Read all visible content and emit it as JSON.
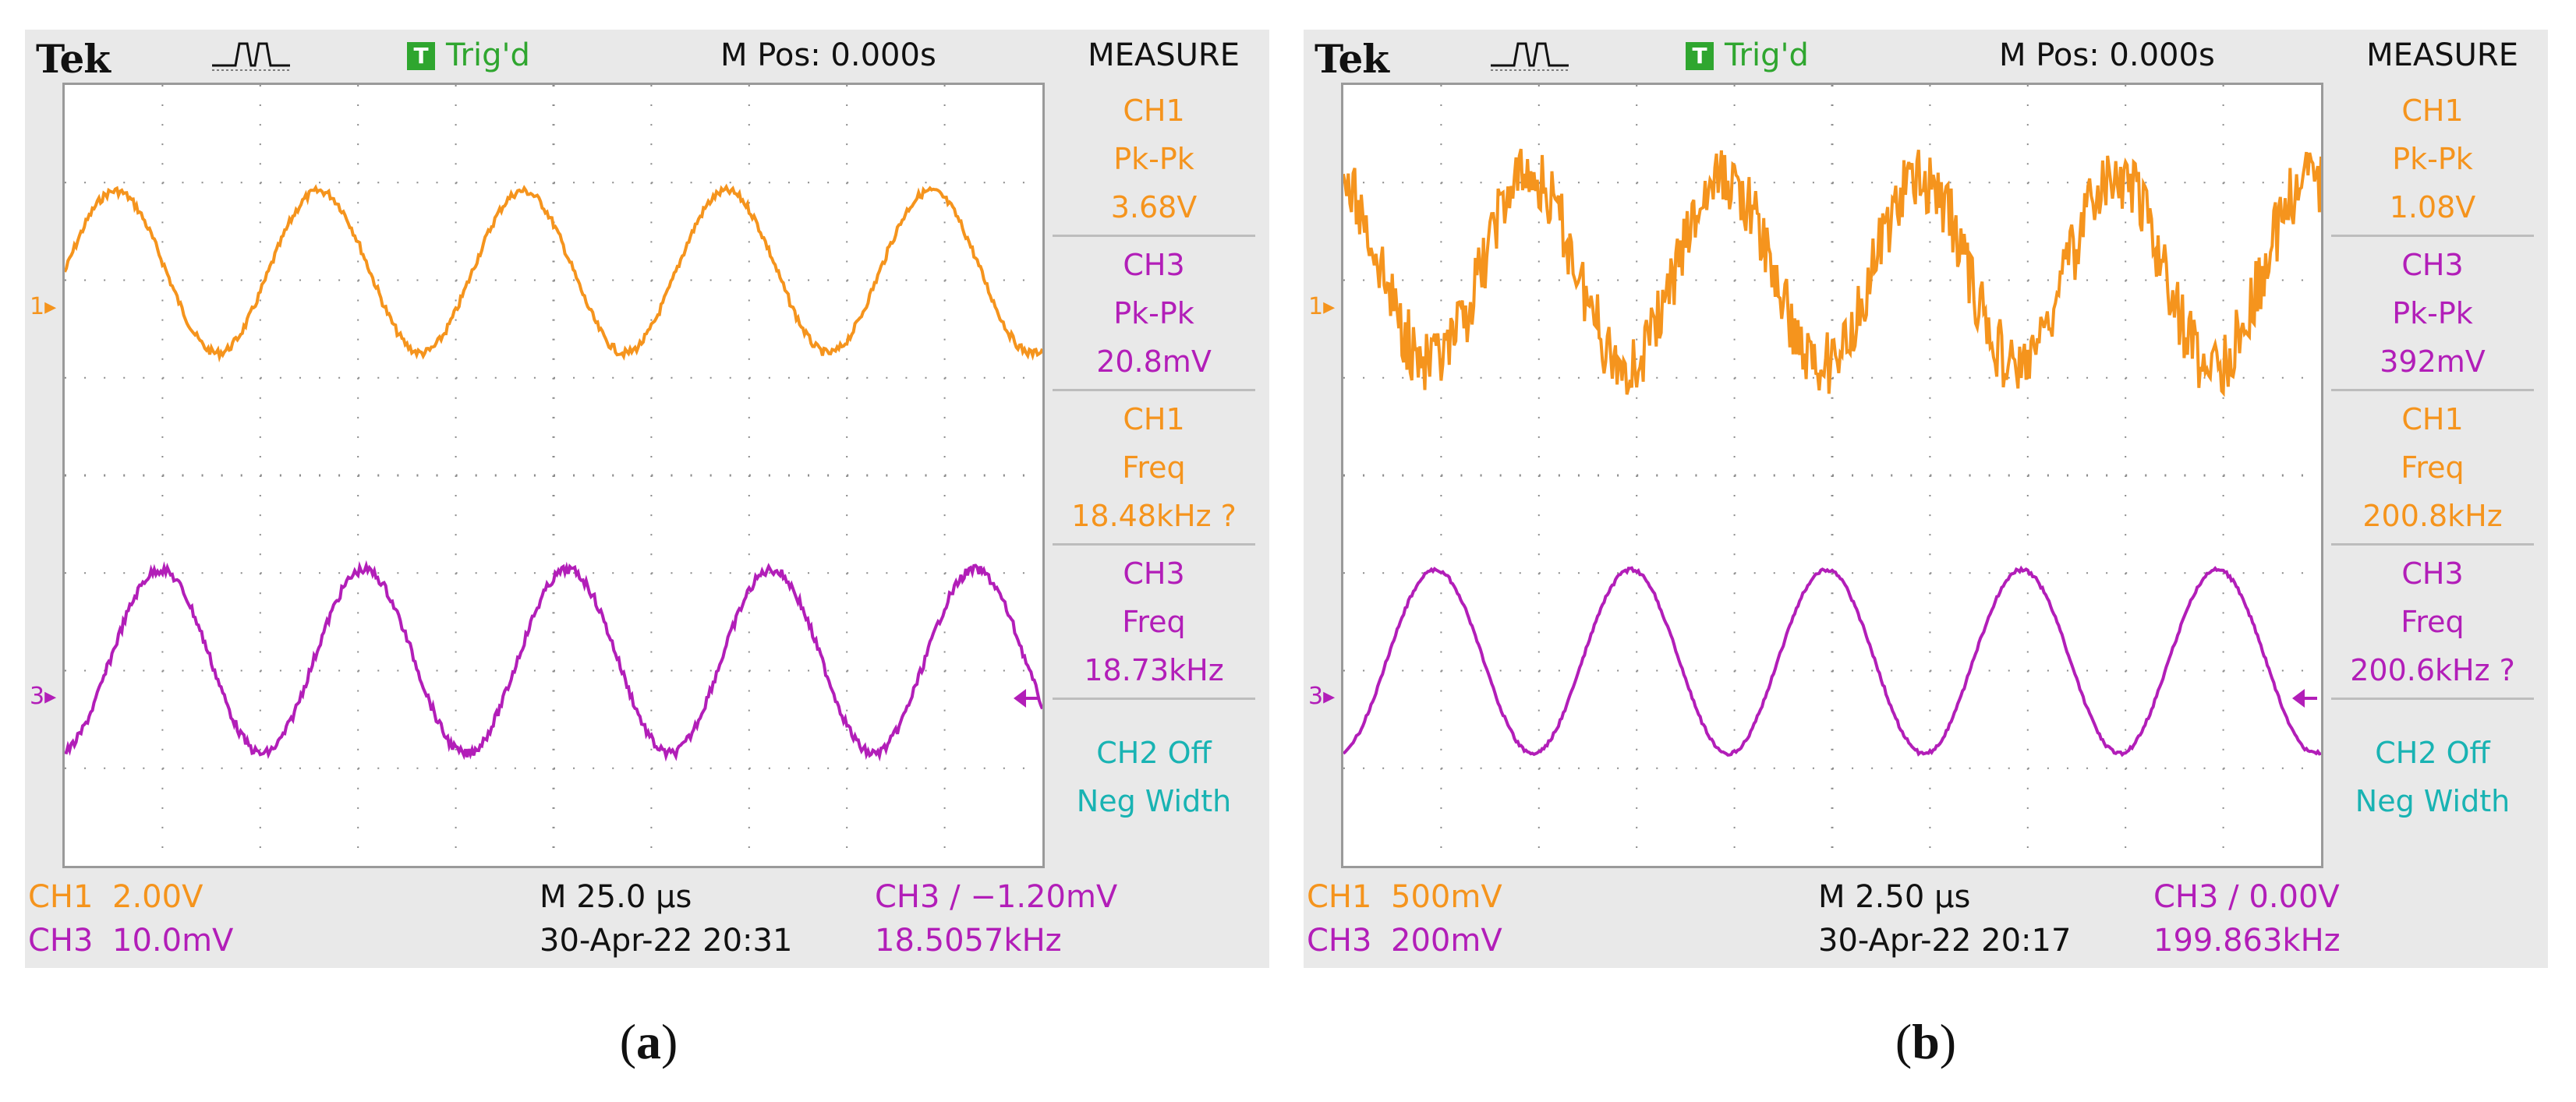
{
  "colors": {
    "ch1": "#f5941d",
    "ch3": "#b21eb8",
    "ch2": "#19b3b3",
    "trig": "#2fa62f"
  },
  "panels": [
    {
      "caption_open": "(",
      "caption_letter": "a",
      "caption_close": ")",
      "header": {
        "brand": "Tek",
        "trig_icon": "T",
        "trig_status": "Trig'd",
        "m_pos": "M Pos: 0.000s",
        "measure_title": "MEASURE"
      },
      "markers": {
        "ch1": "1▸",
        "ch3": "3▸"
      },
      "measurements": [
        {
          "channel": "CH1",
          "label": "Pk-Pk",
          "value": "3.68V",
          "color": "#f5941d"
        },
        {
          "channel": "CH3",
          "label": "Pk-Pk",
          "value": "20.8mV",
          "color": "#b21eb8"
        },
        {
          "channel": "CH1",
          "label": "Freq",
          "value": "18.48kHz ?",
          "color": "#f5941d"
        },
        {
          "channel": "CH3",
          "label": "Freq",
          "value": "18.73kHz",
          "color": "#b21eb8"
        },
        {
          "channel": "CH2 Off",
          "label": "Neg Width",
          "value": "",
          "color": "#19b3b3"
        }
      ],
      "footer": {
        "ch1_label": "CH1",
        "ch1_scale": "2.00V",
        "ch3_label": "CH3",
        "ch3_scale": "10.0mV",
        "timebase": "M 25.0 µs",
        "datetime": "30-Apr-22 20:31",
        "trigger": "CH3 ∕ −1.20mV",
        "trigger_freq": "18.5057kHz"
      },
      "waves": {
        "ch1_cycles": 4.8,
        "ch1_phase": 0.0,
        "ch1_noise": 0.05,
        "ch3_cycles": 4.8,
        "ch3_phase": 0.0,
        "ch3_noise": 0.05
      }
    },
    {
      "caption_open": "(",
      "caption_letter": "b",
      "caption_close": ")",
      "header": {
        "brand": "Tek",
        "trig_icon": "T",
        "trig_status": "Trig'd",
        "m_pos": "M Pos: 0.000s",
        "measure_title": "MEASURE"
      },
      "markers": {
        "ch1": "1▸",
        "ch3": "3▸"
      },
      "measurements": [
        {
          "channel": "CH1",
          "label": "Pk-Pk",
          "value": "1.08V",
          "color": "#f5941d"
        },
        {
          "channel": "CH3",
          "label": "Pk-Pk",
          "value": "392mV",
          "color": "#b21eb8"
        },
        {
          "channel": "CH1",
          "label": "Freq",
          "value": "200.8kHz",
          "color": "#f5941d"
        },
        {
          "channel": "CH3",
          "label": "Freq",
          "value": "200.6kHz ?",
          "color": "#b21eb8"
        },
        {
          "channel": "CH2 Off",
          "label": "Neg Width",
          "value": "",
          "color": "#19b3b3"
        }
      ],
      "footer": {
        "ch1_label": "CH1",
        "ch1_scale": "500mV",
        "ch3_label": "CH3",
        "ch3_scale": "200mV",
        "timebase": "M 2.50 µs",
        "datetime": "30-Apr-22 20:17",
        "trigger": "CH3 ∕ 0.00V",
        "trigger_freq": "199.863kHz"
      },
      "waves": {
        "ch1_cycles": 5.0,
        "ch1_phase": 0.3,
        "ch1_noise": 0.35,
        "ch3_cycles": 5.0,
        "ch3_phase": 0.0,
        "ch3_noise": 0.02
      }
    }
  ]
}
